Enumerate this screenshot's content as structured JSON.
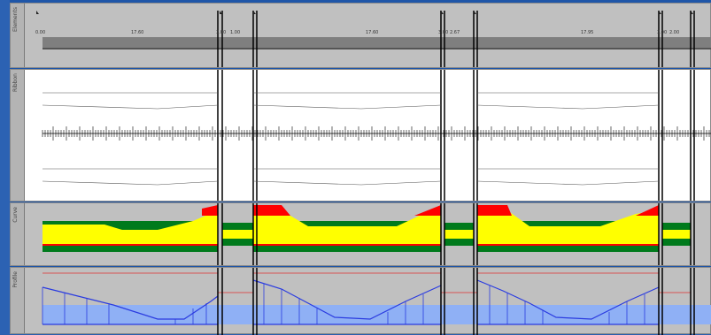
{
  "window": {
    "lanes": [
      {
        "label": "Elements"
      },
      {
        "label": "Ribbon"
      },
      {
        "label": "Curve"
      },
      {
        "label": "Profile"
      }
    ]
  },
  "colors": {
    "background": "#2b5fae",
    "lane_bg": "#c0c0c0",
    "ribbon_bg": "#ffffff",
    "divider": "#000000",
    "diagram_bar": "#808080",
    "fill_yellow": "#ffff00",
    "fill_green": "#007a1c",
    "fill_red": "#ff0000",
    "profile_blue": "#2a3be0",
    "profile_band": "#8fb0f5",
    "profile_red_line": "#e03030"
  },
  "elements_lane": {
    "station_values": [
      "0.00",
      "17.60",
      "",
      "",
      "",
      "17.60",
      "",
      "",
      "",
      "17.95",
      "",
      ""
    ],
    "small_ticks": [
      "3.00",
      "1.00",
      "3.00",
      "2.67",
      "3.00",
      "2.00"
    ]
  }
}
